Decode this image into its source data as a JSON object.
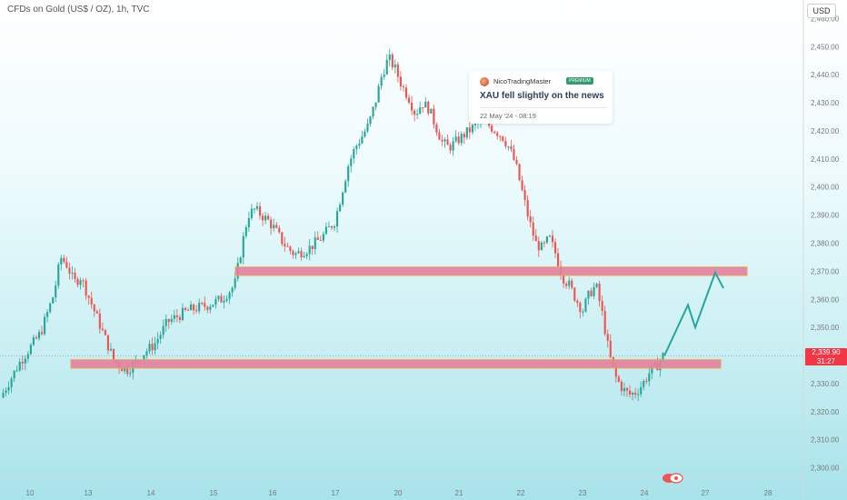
{
  "header": {
    "title": "CFDs on Gold (US$ / OZ), 1h, TVC"
  },
  "axis": {
    "currency_label": "USD"
  },
  "last_price": {
    "value": "2,339.90",
    "countdown": "31:27"
  },
  "news_card": {
    "author": "NicoTradingMaster",
    "badge": "PREMIUM",
    "title": "XAU fell slightly on the news",
    "timestamp": "22 May '24 - 08:19"
  },
  "colors": {
    "bull": "#26a69a",
    "bear": "#ef5350",
    "zone_fill": "#e37fa0",
    "zone_border": "#f0a34a",
    "projection": "#26a69a",
    "price_tag": "#f23645"
  },
  "chart_data": {
    "type": "candlestick",
    "title": "CFDs on Gold (US$ / OZ), 1h, TVC",
    "y_axis": {
      "unit": "USD",
      "range": [
        2295,
        2465
      ],
      "ticks": [
        2300,
        2310,
        2320,
        2330,
        2340,
        2350,
        2360,
        2370,
        2380,
        2390,
        2400,
        2410,
        2420,
        2430,
        2440,
        2450,
        2460
      ]
    },
    "x_axis": {
      "ticks": [
        "10",
        "13",
        "14",
        "15",
        "16",
        "17",
        "20",
        "21",
        "22",
        "23",
        "24",
        "27",
        "28"
      ]
    },
    "last_price": 2339.9,
    "price_path": [
      [
        0,
        2325
      ],
      [
        3,
        2338
      ],
      [
        6,
        2348
      ],
      [
        8,
        2362
      ],
      [
        9,
        2375
      ],
      [
        10,
        2372
      ],
      [
        11,
        2366
      ],
      [
        12,
        2368
      ],
      [
        13,
        2362
      ],
      [
        14,
        2356
      ],
      [
        15,
        2350
      ],
      [
        16,
        2344
      ],
      [
        17,
        2338
      ],
      [
        18,
        2336
      ],
      [
        19,
        2335
      ],
      [
        20,
        2337
      ],
      [
        21,
        2340
      ],
      [
        22,
        2342
      ],
      [
        23,
        2344
      ],
      [
        25,
        2352
      ],
      [
        28,
        2356
      ],
      [
        31,
        2358
      ],
      [
        33,
        2360
      ],
      [
        35,
        2365
      ],
      [
        36,
        2378
      ],
      [
        37,
        2390
      ],
      [
        38,
        2392
      ],
      [
        39,
        2390
      ],
      [
        40,
        2388
      ],
      [
        41,
        2385
      ],
      [
        42,
        2381
      ],
      [
        43,
        2378
      ],
      [
        44,
        2376
      ],
      [
        46,
        2378
      ],
      [
        48,
        2382
      ],
      [
        50,
        2388
      ],
      [
        51,
        2398
      ],
      [
        52,
        2408
      ],
      [
        53,
        2414
      ],
      [
        54,
        2418
      ],
      [
        55,
        2422
      ],
      [
        56,
        2430
      ],
      [
        57,
        2440
      ],
      [
        58,
        2446
      ],
      [
        59,
        2442
      ],
      [
        60,
        2436
      ],
      [
        61,
        2432
      ],
      [
        62,
        2426
      ],
      [
        63,
        2430
      ],
      [
        64,
        2428
      ],
      [
        65,
        2422
      ],
      [
        66,
        2416
      ],
      [
        67,
        2414
      ],
      [
        68,
        2416
      ],
      [
        69,
        2418
      ],
      [
        70,
        2420
      ],
      [
        71,
        2422
      ],
      [
        72,
        2424
      ],
      [
        73,
        2422
      ],
      [
        74,
        2420
      ],
      [
        75,
        2418
      ],
      [
        76,
        2414
      ],
      [
        77,
        2408
      ],
      [
        78,
        2398
      ],
      [
        79,
        2388
      ],
      [
        80,
        2380
      ],
      [
        81,
        2378
      ],
      [
        82,
        2382
      ],
      [
        83,
        2376
      ],
      [
        84,
        2368
      ],
      [
        85,
        2365
      ],
      [
        86,
        2360
      ],
      [
        87,
        2356
      ],
      [
        88,
        2362
      ],
      [
        89,
        2365
      ],
      [
        90,
        2354
      ],
      [
        91,
        2340
      ],
      [
        92,
        2332
      ],
      [
        93,
        2328
      ],
      [
        94,
        2326
      ],
      [
        95,
        2327
      ],
      [
        96,
        2330
      ],
      [
        97,
        2334
      ],
      [
        98,
        2336
      ],
      [
        99,
        2339.9
      ]
    ],
    "zones": [
      {
        "from_price": 2335.5,
        "to_price": 2338.5
      },
      {
        "from_price": 2368.5,
        "to_price": 2371.5
      }
    ],
    "projection": [
      [
        2339.9,
        0
      ],
      [
        2358,
        1
      ],
      [
        2350,
        2
      ],
      [
        2369.5,
        3
      ],
      [
        2364,
        4
      ]
    ]
  }
}
